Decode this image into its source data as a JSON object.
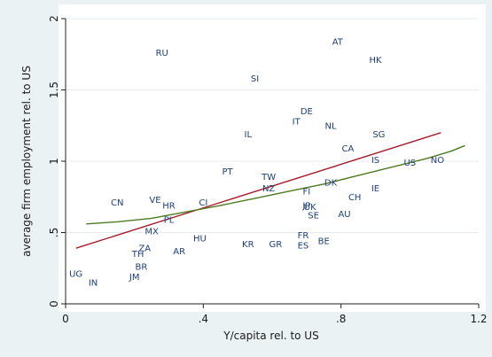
{
  "chart_data": {
    "type": "scatter",
    "title": "",
    "xlabel": "Y/capita rel. to US",
    "ylabel": "average firm employment rel. to US",
    "xlim": [
      0,
      1.2
    ],
    "ylim": [
      0,
      2
    ],
    "x_ticks": [
      0,
      0.4,
      0.8,
      1.2
    ],
    "x_tick_labels": [
      "0",
      ".4",
      ".8",
      "1.2"
    ],
    "y_ticks": [
      0,
      0.5,
      1,
      1.5,
      2
    ],
    "y_tick_labels": [
      "0",
      ".5",
      "1",
      "1.5",
      "2"
    ],
    "grid": "horizontal",
    "legend": "none",
    "points": [
      {
        "label": "RU",
        "x": 0.28,
        "y": 1.76
      },
      {
        "label": "AT",
        "x": 0.79,
        "y": 1.84
      },
      {
        "label": "HK",
        "x": 0.9,
        "y": 1.71
      },
      {
        "label": "SI",
        "x": 0.55,
        "y": 1.58
      },
      {
        "label": "DE",
        "x": 0.7,
        "y": 1.35
      },
      {
        "label": "IT",
        "x": 0.67,
        "y": 1.28
      },
      {
        "label": "NL",
        "x": 0.77,
        "y": 1.25
      },
      {
        "label": "IL",
        "x": 0.53,
        "y": 1.19
      },
      {
        "label": "SG",
        "x": 0.91,
        "y": 1.19
      },
      {
        "label": "CA",
        "x": 0.82,
        "y": 1.09
      },
      {
        "label": "IS",
        "x": 0.9,
        "y": 1.01
      },
      {
        "label": "US",
        "x": 1.0,
        "y": 0.99
      },
      {
        "label": "NO",
        "x": 1.08,
        "y": 1.01
      },
      {
        "label": "PT",
        "x": 0.47,
        "y": 0.93
      },
      {
        "label": "TW",
        "x": 0.59,
        "y": 0.89
      },
      {
        "label": "NZ",
        "x": 0.59,
        "y": 0.81
      },
      {
        "label": "DK",
        "x": 0.77,
        "y": 0.85
      },
      {
        "label": "IE",
        "x": 0.9,
        "y": 0.81
      },
      {
        "label": "FI",
        "x": 0.7,
        "y": 0.79
      },
      {
        "label": "CH",
        "x": 0.84,
        "y": 0.75
      },
      {
        "label": "JP",
        "x": 0.7,
        "y": 0.69
      },
      {
        "label": "UK",
        "x": 0.71,
        "y": 0.68
      },
      {
        "label": "SE",
        "x": 0.72,
        "y": 0.62
      },
      {
        "label": "AU",
        "x": 0.81,
        "y": 0.63
      },
      {
        "label": "CN",
        "x": 0.15,
        "y": 0.71
      },
      {
        "label": "VE",
        "x": 0.26,
        "y": 0.73
      },
      {
        "label": "HR",
        "x": 0.3,
        "y": 0.69
      },
      {
        "label": "CI",
        "x": 0.4,
        "y": 0.71
      },
      {
        "label": "PL",
        "x": 0.3,
        "y": 0.59
      },
      {
        "label": "MX",
        "x": 0.25,
        "y": 0.51
      },
      {
        "label": "HU",
        "x": 0.39,
        "y": 0.46
      },
      {
        "label": "KR",
        "x": 0.53,
        "y": 0.42
      },
      {
        "label": "GR",
        "x": 0.61,
        "y": 0.42
      },
      {
        "label": "FR",
        "x": 0.69,
        "y": 0.48
      },
      {
        "label": "BE",
        "x": 0.75,
        "y": 0.44
      },
      {
        "label": "ES",
        "x": 0.69,
        "y": 0.41
      },
      {
        "label": "ZA",
        "x": 0.23,
        "y": 0.39
      },
      {
        "label": "AR",
        "x": 0.33,
        "y": 0.37
      },
      {
        "label": "TH",
        "x": 0.21,
        "y": 0.35
      },
      {
        "label": "BR",
        "x": 0.22,
        "y": 0.26
      },
      {
        "label": "JM",
        "x": 0.2,
        "y": 0.19
      },
      {
        "label": "UG",
        "x": 0.03,
        "y": 0.21
      },
      {
        "label": "IN",
        "x": 0.08,
        "y": 0.15
      }
    ],
    "fit_lines": [
      {
        "kind": "linear fit",
        "color": "#a61c2b",
        "x": [
          0.03,
          1.09
        ],
        "y": [
          0.39,
          1.2
        ]
      },
      {
        "kind": "smoothed fit",
        "color": "#4e7a26",
        "x": [
          0.06,
          0.15,
          0.25,
          0.35,
          0.45,
          0.55,
          0.65,
          0.75,
          0.85,
          0.95,
          1.05,
          1.12,
          1.16
        ],
        "y": [
          0.56,
          0.575,
          0.6,
          0.645,
          0.69,
          0.74,
          0.79,
          0.84,
          0.9,
          0.96,
          1.02,
          1.07,
          1.11
        ]
      }
    ]
  },
  "colors": {
    "background": "#eaf2f3",
    "plot_area": "#ffffff",
    "gridline": "#e6eef1",
    "axis": "#222222",
    "point_label": "#1d3f78"
  }
}
